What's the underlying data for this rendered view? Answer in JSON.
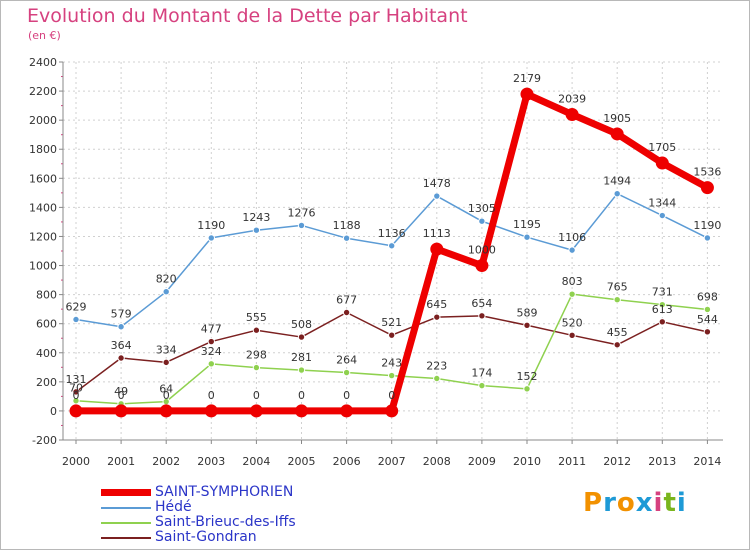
{
  "header": {
    "title": "Evolution du Montant de la Dette par Habitant",
    "subtitle": "(en €)"
  },
  "logo": {
    "text": "Proxiti"
  },
  "chart_data": {
    "type": "line",
    "title": "Evolution du Montant de la Dette par Habitant",
    "subtitle": "(en €)",
    "xlabel": "",
    "ylabel": "",
    "ylim": [
      -200,
      2400
    ],
    "yticks": [
      -200,
      0,
      200,
      400,
      600,
      800,
      1000,
      1200,
      1400,
      1600,
      1800,
      2000,
      2200,
      2400
    ],
    "grid": true,
    "legend_position": "bottom-left",
    "categories": [
      "2000",
      "2001",
      "2002",
      "2003",
      "2004",
      "2005",
      "2006",
      "2007",
      "2008",
      "2009",
      "2010",
      "2011",
      "2012",
      "2013",
      "2014"
    ],
    "series": [
      {
        "name": "SAINT-SYMPHORIEN",
        "color": "#ee0000",
        "values": [
          0,
          0,
          0,
          0,
          0,
          0,
          0,
          0,
          1113,
          1000,
          2179,
          2039,
          1905,
          1705,
          1536
        ],
        "labels": [
          "0",
          "0",
          "0",
          "0",
          "0",
          "0",
          "0",
          "0",
          "1113",
          "1000",
          "2179",
          "2039",
          "1905",
          "1705",
          "1536"
        ]
      },
      {
        "name": "Hédé",
        "color": "#5b9bd5",
        "values": [
          629,
          579,
          820,
          1190,
          1243,
          1276,
          1188,
          1136,
          1478,
          1305,
          1195,
          1106,
          1494,
          1344,
          1190
        ],
        "labels": [
          "629",
          "579",
          "820",
          "1190",
          "1243",
          "1276",
          "1188",
          "1136",
          "1478",
          "1305",
          "1195",
          "1106",
          "1494",
          "1344",
          "1190"
        ]
      },
      {
        "name": "Saint-Brieuc-des-Iffs",
        "color": "#8fd14f",
        "values": [
          70,
          49,
          64,
          324,
          298,
          281,
          264,
          243,
          223,
          174,
          152,
          803,
          765,
          731,
          698
        ],
        "labels": [
          "70",
          "49",
          "64",
          "324",
          "298",
          "281",
          "264",
          "243",
          "223",
          "174",
          "152",
          "803",
          "765",
          "731",
          "698"
        ]
      },
      {
        "name": "Saint-Gondran",
        "color": "#7b2020",
        "values": [
          131,
          364,
          334,
          477,
          555,
          508,
          677,
          521,
          645,
          654,
          589,
          520,
          455,
          613,
          544
        ],
        "labels": [
          "131",
          "364",
          "334",
          "477",
          "555",
          "508",
          "677",
          "521",
          "645",
          "654",
          "589",
          "520",
          "455",
          "613",
          "544"
        ]
      }
    ]
  }
}
